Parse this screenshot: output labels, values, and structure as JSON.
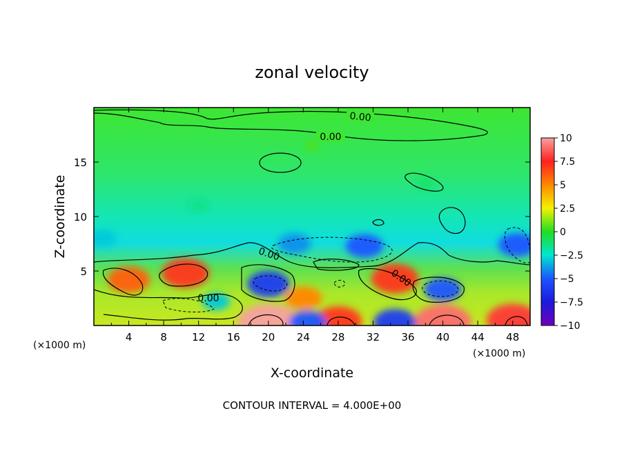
{
  "chart_data": {
    "type": "heatmap",
    "title": "zonal velocity",
    "xlabel": "X-coordinate",
    "ylabel": "Z-coordinate",
    "x_unit_left": "(×1000 m)",
    "x_unit_right": "(×1000 m)",
    "xlim": [
      0,
      50
    ],
    "ylim": [
      0,
      20
    ],
    "x_ticks": [
      4,
      8,
      12,
      16,
      20,
      24,
      28,
      32,
      36,
      40,
      44,
      48
    ],
    "y_ticks": [
      5,
      10,
      15
    ],
    "footnote": "CONTOUR INTERVAL = 4.000E+00",
    "contour_labels": [
      "0.00",
      "0.00",
      "0.00",
      "0.00",
      "0.00"
    ],
    "colorbar": {
      "range": [
        -10,
        10
      ],
      "ticks": [
        "10",
        "7.5",
        "5",
        "2.5",
        "0",
        "-2.5",
        "-5",
        "-7.5",
        "-10"
      ],
      "colors": [
        "#f8a0a0",
        "#ff2020",
        "#ff8800",
        "#f2f200",
        "#22dd22",
        "#00e6d0",
        "#1a55ff",
        "#1a1add",
        "#7000bb"
      ]
    },
    "features": [
      {
        "x": 20,
        "z": 0.2,
        "value": 10
      },
      {
        "x": 40,
        "z": 0.3,
        "value": 9
      },
      {
        "x": 28,
        "z": 0.4,
        "value": 7
      },
      {
        "x": 48,
        "z": 0.5,
        "value": 8
      },
      {
        "x": 10.5,
        "z": 4.8,
        "value": 7
      },
      {
        "x": 34.5,
        "z": 4.3,
        "value": 7
      },
      {
        "x": 4,
        "z": 4.2,
        "value": 6
      },
      {
        "x": 24,
        "z": 2.5,
        "value": 5
      },
      {
        "x": 20,
        "z": 3.8,
        "value": -6
      },
      {
        "x": 31,
        "z": 7.3,
        "value": -5
      },
      {
        "x": 23,
        "z": 7.5,
        "value": -4
      },
      {
        "x": 40,
        "z": 3.3,
        "value": -5
      },
      {
        "x": 48.5,
        "z": 7.4,
        "value": -5
      },
      {
        "x": 34.5,
        "z": 0.3,
        "value": -6
      },
      {
        "x": 24.5,
        "z": 0.3,
        "value": -5
      },
      {
        "x": 14,
        "z": 2.2,
        "value": -3
      },
      {
        "x": 1,
        "z": 8,
        "value": -3
      },
      {
        "x": 25,
        "z": 16.5,
        "value": 0.5
      },
      {
        "x": 38,
        "z": 13,
        "value": -1
      },
      {
        "x": 12,
        "z": 11,
        "value": -1.5
      }
    ]
  }
}
